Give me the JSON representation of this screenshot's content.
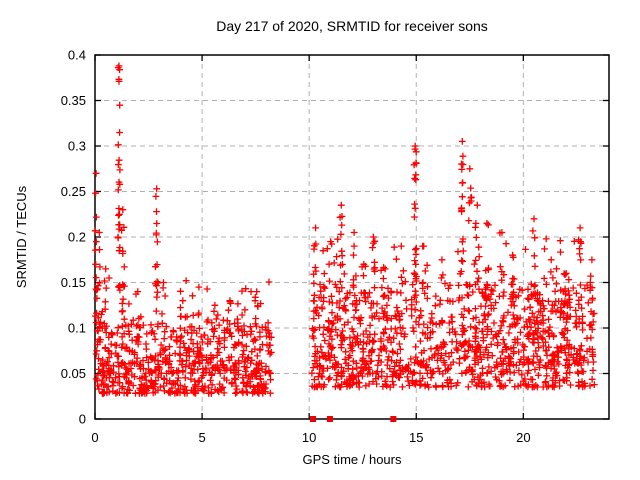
{
  "figure": {
    "background": "#ffffff"
  },
  "chart_data": {
    "type": "scatter",
    "title": "Day 217 of 2020, SRMTID for receiver sons",
    "xlabel": "GPS time / hours",
    "ylabel": "SRMTID / TECUs",
    "xlim": [
      0,
      24
    ],
    "ylim": [
      0,
      0.4
    ],
    "xticks": {
      "values": [
        0,
        5,
        10,
        15,
        20
      ],
      "labels": [
        "0",
        "5",
        "10",
        "15",
        "20"
      ]
    },
    "yticks": {
      "values": [
        0,
        0.05,
        0.1,
        0.15,
        0.2,
        0.25,
        0.3,
        0.35,
        0.4
      ],
      "labels": [
        "0",
        "0.05",
        "0.1",
        "0.15",
        "0.2",
        "0.25",
        "0.3",
        "0.35",
        "0.4"
      ]
    },
    "grid": true,
    "legend": "none",
    "colors": {
      "points": "#ff0000",
      "gap_markers": "#ee0000",
      "grid": "#b0b0b0",
      "frame": "#000000",
      "text": "#000000"
    },
    "marker": "plus",
    "marker_half_size": 3.4,
    "marker_stroke_width": 1.3,
    "seed": 20200805,
    "data_gap_hours": [
      8.25,
      10.12
    ],
    "series": [
      {
        "name": "SRMTID values",
        "marker": "plus",
        "color": "#ff0000",
        "generated": {
          "baseline_clusters": [
            {
              "x0": 0.0,
              "x1": 8.25,
              "n": 500,
              "y0": 0.028,
              "y1": 0.11,
              "skew": 1.7
            },
            {
              "x0": 0.0,
              "x1": 8.25,
              "n": 120,
              "y0": 0.05,
              "y1": 0.155,
              "skew": 2.2
            },
            {
              "x0": 10.12,
              "x1": 23.35,
              "n": 650,
              "y0": 0.035,
              "y1": 0.15,
              "skew": 1.6
            },
            {
              "x0": 10.12,
              "x1": 23.35,
              "n": 180,
              "y0": 0.05,
              "y1": 0.2,
              "skew": 2.6
            },
            {
              "x0": 17.0,
              "x1": 23.35,
              "n": 150,
              "y0": 0.06,
              "y1": 0.155,
              "skew": 1.4
            }
          ],
          "spike_columns": [
            {
              "x": 0.05,
              "w": 0.1,
              "y0": 0.1,
              "y1": 0.27,
              "n": 14
            },
            {
              "x": 0.2,
              "w": 0.2,
              "y0": 0.08,
              "y1": 0.205,
              "n": 10
            },
            {
              "x": 0.5,
              "w": 0.2,
              "y0": 0.07,
              "y1": 0.165,
              "n": 8
            },
            {
              "x": 1.12,
              "w": 0.1,
              "y0": 0.1,
              "y1": 0.388,
              "n": 30
            },
            {
              "x": 1.3,
              "w": 0.15,
              "y0": 0.08,
              "y1": 0.23,
              "n": 12
            },
            {
              "x": 2.0,
              "w": 0.3,
              "y0": 0.05,
              "y1": 0.14,
              "n": 8
            },
            {
              "x": 2.88,
              "w": 0.12,
              "y0": 0.1,
              "y1": 0.253,
              "n": 16
            },
            {
              "x": 3.2,
              "w": 0.25,
              "y0": 0.05,
              "y1": 0.15,
              "n": 8
            },
            {
              "x": 4.1,
              "w": 0.3,
              "y0": 0.05,
              "y1": 0.13,
              "n": 8
            },
            {
              "x": 4.85,
              "w": 0.2,
              "y0": 0.06,
              "y1": 0.145,
              "n": 8
            },
            {
              "x": 5.6,
              "w": 0.3,
              "y0": 0.05,
              "y1": 0.125,
              "n": 8
            },
            {
              "x": 6.3,
              "w": 0.25,
              "y0": 0.05,
              "y1": 0.13,
              "n": 8
            },
            {
              "x": 7.0,
              "w": 0.3,
              "y0": 0.05,
              "y1": 0.12,
              "n": 8
            },
            {
              "x": 7.55,
              "w": 0.2,
              "y0": 0.05,
              "y1": 0.14,
              "n": 10
            },
            {
              "x": 10.3,
              "w": 0.2,
              "y0": 0.06,
              "y1": 0.21,
              "n": 14
            },
            {
              "x": 10.65,
              "w": 0.2,
              "y0": 0.06,
              "y1": 0.185,
              "n": 10
            },
            {
              "x": 11.0,
              "w": 0.15,
              "y0": 0.07,
              "y1": 0.195,
              "n": 12
            },
            {
              "x": 11.5,
              "w": 0.12,
              "y0": 0.09,
              "y1": 0.235,
              "n": 14
            },
            {
              "x": 12.1,
              "w": 0.18,
              "y0": 0.07,
              "y1": 0.205,
              "n": 12
            },
            {
              "x": 12.55,
              "w": 0.2,
              "y0": 0.06,
              "y1": 0.17,
              "n": 10
            },
            {
              "x": 13.0,
              "w": 0.15,
              "y0": 0.07,
              "y1": 0.2,
              "n": 12
            },
            {
              "x": 13.55,
              "w": 0.2,
              "y0": 0.06,
              "y1": 0.165,
              "n": 10
            },
            {
              "x": 14.3,
              "w": 0.5,
              "y0": 0.05,
              "y1": 0.19,
              "n": 16
            },
            {
              "x": 14.95,
              "w": 0.12,
              "y0": 0.12,
              "y1": 0.3,
              "n": 24
            },
            {
              "x": 15.35,
              "w": 0.2,
              "y0": 0.07,
              "y1": 0.19,
              "n": 10
            },
            {
              "x": 16.2,
              "w": 0.3,
              "y0": 0.06,
              "y1": 0.175,
              "n": 10
            },
            {
              "x": 17.15,
              "w": 0.1,
              "y0": 0.15,
              "y1": 0.305,
              "n": 18
            },
            {
              "x": 17.5,
              "w": 0.15,
              "y0": 0.1,
              "y1": 0.275,
              "n": 12
            },
            {
              "x": 17.85,
              "w": 0.2,
              "y0": 0.09,
              "y1": 0.235,
              "n": 12
            },
            {
              "x": 18.3,
              "w": 0.2,
              "y0": 0.08,
              "y1": 0.215,
              "n": 12
            },
            {
              "x": 19.0,
              "w": 0.25,
              "y0": 0.08,
              "y1": 0.205,
              "n": 12
            },
            {
              "x": 19.5,
              "w": 0.2,
              "y0": 0.07,
              "y1": 0.18,
              "n": 10
            },
            {
              "x": 20.5,
              "w": 0.2,
              "y0": 0.07,
              "y1": 0.22,
              "n": 12
            },
            {
              "x": 21.3,
              "w": 0.3,
              "y0": 0.06,
              "y1": 0.175,
              "n": 10
            },
            {
              "x": 22.0,
              "w": 0.3,
              "y0": 0.06,
              "y1": 0.16,
              "n": 8
            },
            {
              "x": 22.65,
              "w": 0.15,
              "y0": 0.08,
              "y1": 0.21,
              "n": 12
            },
            {
              "x": 23.2,
              "w": 0.15,
              "y0": 0.06,
              "y1": 0.175,
              "n": 8
            }
          ]
        }
      },
      {
        "name": "baseline gap markers",
        "marker": "filled-square",
        "color": "#ee0000",
        "points": [
          [
            10.18,
            0
          ],
          [
            10.97,
            0
          ],
          [
            13.93,
            0
          ]
        ]
      }
    ]
  }
}
